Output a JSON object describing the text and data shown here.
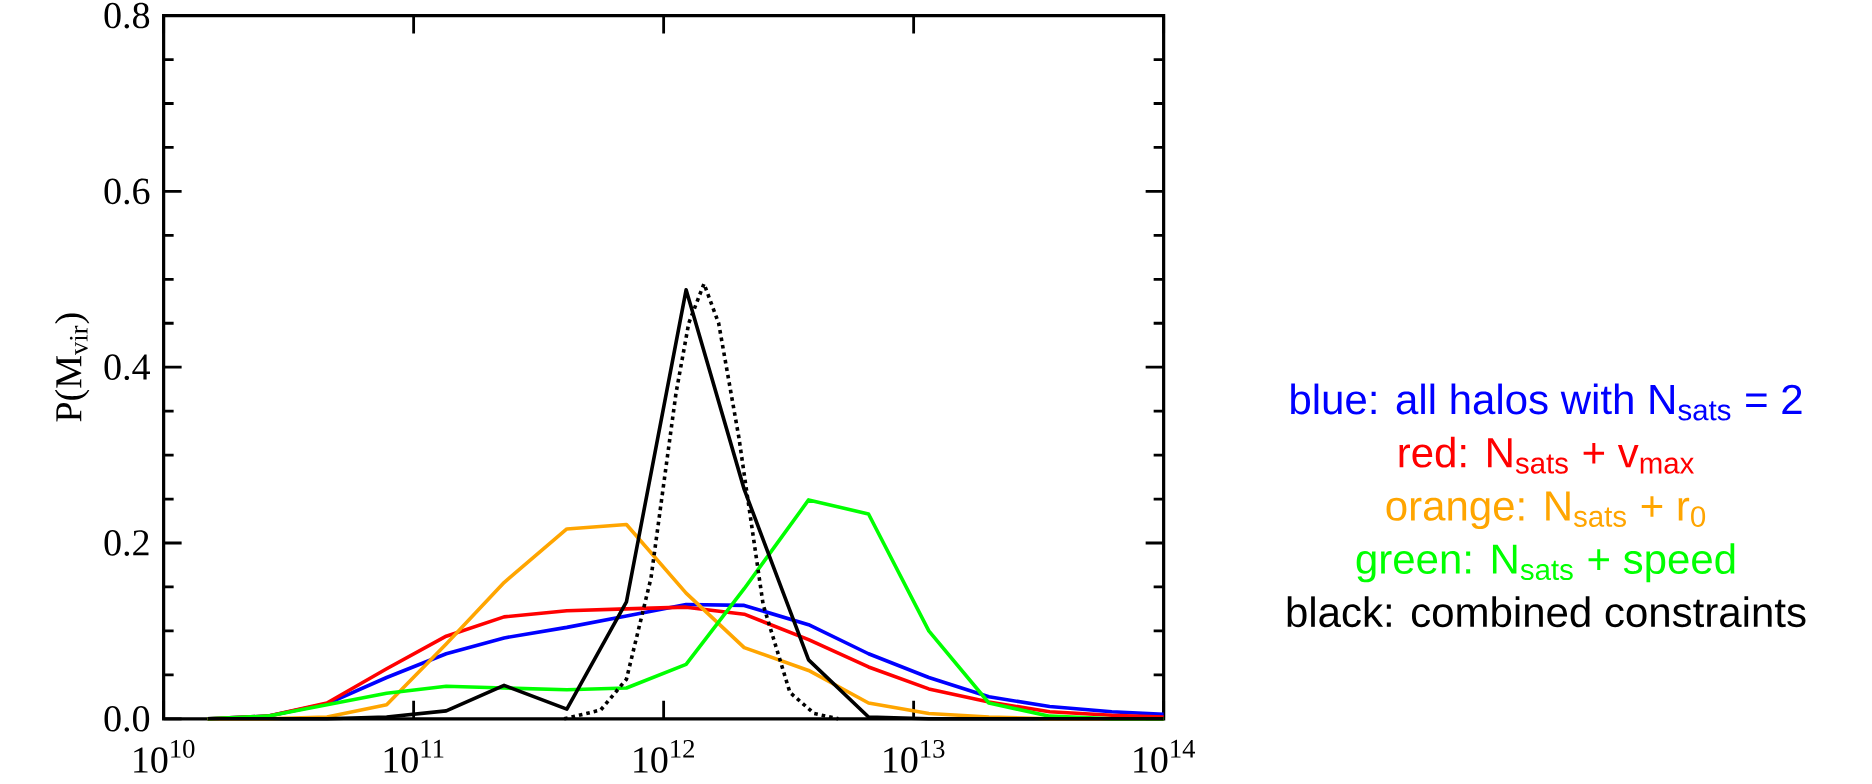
{
  "chart_data": {
    "type": "line",
    "ylabel": "P(M$_{vir}$)",
    "log": "x",
    "xlim": [
      10000000000.0,
      100000000000000.0
    ],
    "ylim": [
      0,
      0.8
    ],
    "xticks": [
      {
        "value": 10000000000.0,
        "label": "10$^{10}$"
      },
      {
        "value": 100000000000.0,
        "label": "10$^{11}$"
      },
      {
        "value": 1000000000000.0,
        "label": "10$^{12}$"
      },
      {
        "value": 10000000000000.0,
        "label": "10$^{13}$"
      },
      {
        "value": 100000000000000.0,
        "label": "10$^{14}$"
      }
    ],
    "yticks": [
      {
        "value": 0,
        "label": "0.0"
      },
      {
        "value": 0.2,
        "label": "0.2"
      },
      {
        "value": 0.4,
        "label": "0.4"
      },
      {
        "value": 0.6,
        "label": "0.6"
      },
      {
        "value": 0.8,
        "label": "0.8"
      }
    ],
    "x": [
      15000000000.0,
      26000000000.0,
      45000000000.0,
      78000000000.0,
      135000000000.0,
      230000000000.0,
      410000000000.0,
      710000000000.0,
      1230000000000.0,
      2100000000000.0,
      3800000000000.0,
      6600000000000.0,
      11500000000000.0,
      20000000000000.0,
      35000000000000.0,
      62000000000000.0,
      100000000000000.0
    ],
    "legend": "right",
    "marker": "none",
    "line_style": "solid",
    "grid": false,
    "series": [
      {
        "name": "blue: all halos with N$_{sats}$ = 2",
        "color": "#0000ff",
        "values": [
          0,
          0.003,
          0.017,
          0.047,
          0.074,
          0.092,
          0.104,
          0.117,
          0.13,
          0.129,
          0.107,
          0.074,
          0.047,
          0.025,
          0.014,
          0.008,
          0.005
        ]
      },
      {
        "name": "red: N$_{sats}$ + v$_{max}$",
        "color": "#ff0000",
        "values": [
          0,
          0.003,
          0.018,
          0.057,
          0.094,
          0.116,
          0.123,
          0.125,
          0.127,
          0.119,
          0.09,
          0.059,
          0.034,
          0.019,
          0.008,
          0.004,
          0.002
        ]
      },
      {
        "name": "orange: N$_{sats}$ + r$_{0}$",
        "color": "#ffa500",
        "values": [
          0,
          0,
          0.002,
          0.016,
          0.085,
          0.155,
          0.216,
          0.221,
          0.143,
          0.081,
          0.055,
          0.018,
          0.006,
          0.002,
          0,
          0,
          0
        ]
      },
      {
        "name": "green: N$_{sats}$ + speed",
        "color": "#00ff00",
        "values": [
          0,
          0.003,
          0.016,
          0.029,
          0.037,
          0.035,
          0.033,
          0.035,
          0.062,
          0.148,
          0.249,
          0.233,
          0.1,
          0.018,
          0.003,
          0,
          0
        ]
      },
      {
        "name": "black: combined constraints",
        "color": "#000000",
        "values": [
          0,
          0,
          0,
          0.002,
          0.009,
          0.038,
          0.011,
          0.133,
          0.488,
          0.261,
          0.067,
          0.002,
          0,
          0,
          0,
          0,
          0
        ]
      },
      {
        "color": "#000000",
        "line_style": "dotted",
        "x": [
          400000000000.0,
          560000000000.0,
          710000000000.0,
          890000000000.0,
          1120000000000.0,
          1260000000000.0,
          1450000000000.0,
          1660000000000.0,
          2000000000000.0,
          2500000000000.0,
          3200000000000.0,
          4000000000000.0,
          5000000000000.0
        ],
        "values": [
          0,
          0.01,
          0.045,
          0.16,
          0.37,
          0.45,
          0.495,
          0.45,
          0.32,
          0.13,
          0.03,
          0.006,
          0
        ]
      }
    ]
  }
}
